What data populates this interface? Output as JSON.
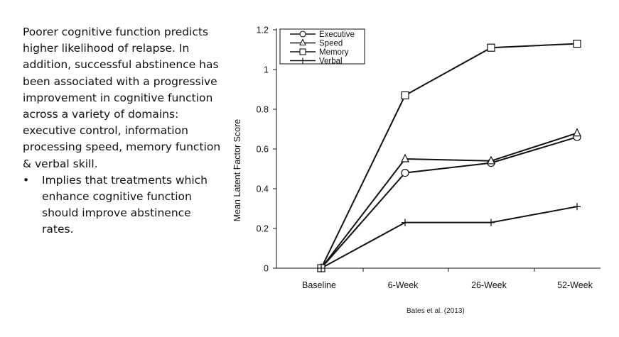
{
  "slide": {
    "paragraph": "Poorer cognitive function predicts higher likelihood of relapse. In addition, successful abstinence has been associated with a progressive improvement in cognitive function across a variety of domains: executive control, information processing speed, memory function & verbal skill.",
    "bullets": [
      "Implies that treatments which enhance cognitive function should improve abstinence rates."
    ],
    "citation": "Bates et al. (2013)"
  },
  "chart_data": {
    "type": "line",
    "title": "",
    "xlabel": "",
    "ylabel": "Mean Latent Factor Score",
    "categories": [
      "Baseline",
      "6-Week",
      "26-Week",
      "52-Week"
    ],
    "ylim": [
      0,
      1.2
    ],
    "yticks": [
      "0",
      "0.2",
      "0.4",
      "0.6",
      "0.8",
      "1",
      "1.2"
    ],
    "grid": false,
    "legend_position": "top-left",
    "series": [
      {
        "name": "Executive",
        "marker": "circle",
        "values": [
          0,
          0.48,
          0.53,
          0.66
        ]
      },
      {
        "name": "Speed",
        "marker": "triangle",
        "values": [
          0,
          0.55,
          0.54,
          0.68
        ]
      },
      {
        "name": "Memory",
        "marker": "square",
        "values": [
          0,
          0.87,
          1.11,
          1.13
        ]
      },
      {
        "name": "Verbal",
        "marker": "plus",
        "values": [
          0,
          0.23,
          0.23,
          0.31
        ]
      }
    ],
    "line_color": "#111111"
  }
}
